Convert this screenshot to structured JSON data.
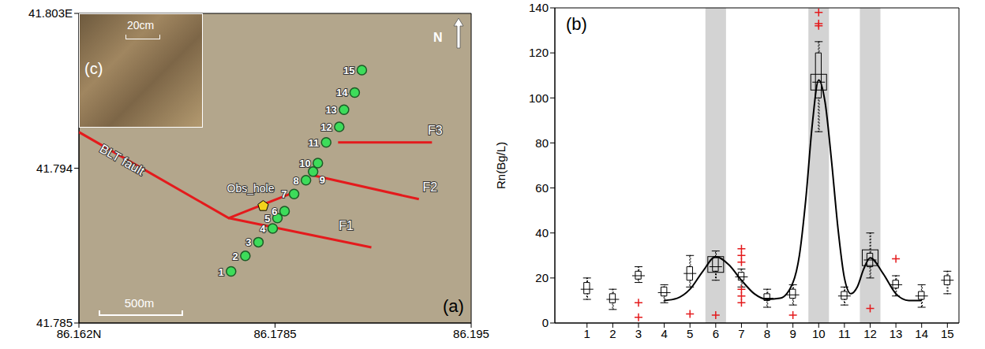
{
  "chart_data": [
    {
      "type": "map",
      "panel": "(a)",
      "xlim": [
        86.162,
        86.195
      ],
      "xticks": [
        {
          "value": 86.162,
          "label": "86.162N"
        },
        86.1785,
        86.195
      ],
      "ylim": [
        41.785,
        41.803
      ],
      "yticks": [
        41.785,
        41.794,
        {
          "value": 41.803,
          "label": "41.803E"
        }
      ],
      "points": {
        "labels": [
          "1",
          "2",
          "3",
          "4",
          "5",
          "6",
          "7",
          "8",
          "9",
          "10",
          "11",
          "12",
          "13",
          "14",
          "15"
        ],
        "lon": [
          86.1748,
          86.176,
          86.1771,
          86.1783,
          86.1787,
          86.1793,
          86.1801,
          86.1811,
          86.1817,
          86.1821,
          86.1828,
          86.1839,
          86.1843,
          86.1852,
          86.1858
        ],
        "lat": [
          41.788,
          41.7889,
          41.7897,
          41.7905,
          41.7911,
          41.7915,
          41.7925,
          41.7933,
          41.7938,
          41.7943,
          41.7955,
          41.7964,
          41.7974,
          41.7984,
          41.7997
        ],
        "color": "#3ddc5a"
      },
      "faults": [
        {
          "name": "BLT fault",
          "lon": [
            86.162,
            86.1746,
            86.1801
          ],
          "lat": [
            41.7961,
            41.7911,
            41.7926
          ],
          "color": "#e41a1c"
        },
        {
          "name": "F1",
          "lon": [
            86.1746,
            86.1866
          ],
          "lat": [
            41.7911,
            41.7894
          ],
          "color": "#e41a1c"
        },
        {
          "name": "F2",
          "lon": [
            86.1816,
            86.1906
          ],
          "lat": [
            41.7936,
            41.7922
          ],
          "color": "#e41a1c"
        },
        {
          "name": "F3",
          "lon": [
            86.1838,
            86.1917
          ],
          "lat": [
            41.7955,
            41.7955
          ],
          "color": "#e41a1c"
        }
      ],
      "obs_hole": {
        "label": "Obs_hole",
        "lon": 86.1775,
        "lat": 41.7918,
        "color": "#f2d21b"
      },
      "north": "N",
      "scale_bar": "500m",
      "inset": {
        "panel": "(c)",
        "scale_bar": "20cm"
      }
    },
    {
      "type": "box",
      "panel": "(b)",
      "y_label": "Rn(Bg/L)",
      "x": [
        1,
        2,
        3,
        4,
        5,
        6,
        7,
        8,
        9,
        10,
        11,
        12,
        13,
        14,
        15
      ],
      "xlim": [
        -0.25,
        15.45
      ],
      "xticks": [
        1,
        2,
        3,
        4,
        5,
        6,
        7,
        8,
        9,
        10,
        11,
        12,
        13,
        14,
        15
      ],
      "ylim": [
        0,
        140
      ],
      "yticks": [
        0,
        20,
        40,
        60,
        80,
        100,
        120,
        140
      ],
      "median": [
        15,
        10.5,
        21,
        13.5,
        22,
        25,
        20.5,
        11,
        12.5,
        107,
        12,
        28,
        17,
        12,
        19
      ],
      "q1": [
        13,
        9,
        19.5,
        12,
        19,
        23,
        19,
        10,
        11,
        100,
        10.5,
        25,
        15.5,
        10.5,
        17
      ],
      "q3": [
        18,
        13,
        23,
        16,
        25,
        29,
        22.5,
        13,
        15,
        120,
        14,
        31,
        19,
        14,
        21
      ],
      "whisker_low": [
        10.5,
        6,
        18,
        9,
        16,
        19,
        16,
        7,
        8,
        85,
        8,
        20,
        12,
        7,
        13
      ],
      "whisker_high": [
        20,
        15,
        25,
        17,
        30,
        32,
        24,
        15,
        17,
        125,
        16,
        40,
        21,
        17,
        23
      ],
      "means": [
        null,
        null,
        null,
        null,
        null,
        26,
        null,
        null,
        null,
        107,
        null,
        29,
        null,
        null,
        null
      ],
      "color": "#000000",
      "outliers": {
        "values": [
          [],
          [],
          [
            9,
            2.5
          ],
          [],
          [
            4
          ],
          [
            3.5
          ],
          [
            33,
            30,
            27,
            15,
            12,
            9
          ],
          [],
          [
            3.5
          ],
          [
            138,
            133,
            132
          ],
          [],
          [
            6.5
          ],
          [
            28.5
          ],
          [],
          []
        ],
        "color": "#e41a1c",
        "marker": "plus"
      },
      "fit_curve": {
        "x": [
          4,
          4.5,
          5,
          5.5,
          6,
          6.5,
          7,
          7.5,
          8,
          8.5,
          9,
          9.25,
          9.5,
          9.75,
          10,
          10.25,
          10.5,
          10.75,
          11,
          11.25,
          11.5,
          11.75,
          12,
          12.5,
          13,
          13.5,
          14
        ],
        "y": [
          10,
          11,
          15,
          23,
          29.5,
          26,
          19,
          13,
          10.5,
          11,
          18,
          30,
          55,
          88,
          108,
          98,
          72,
          42,
          20,
          13,
          16,
          24,
          29,
          22,
          13,
          10,
          10
        ],
        "color": "#000000"
      },
      "shaded": {
        "ranges": [
          [
            5.6,
            6.4
          ],
          [
            9.6,
            10.4
          ],
          [
            11.6,
            12.4
          ]
        ],
        "color": "#d3d3d3"
      }
    }
  ]
}
